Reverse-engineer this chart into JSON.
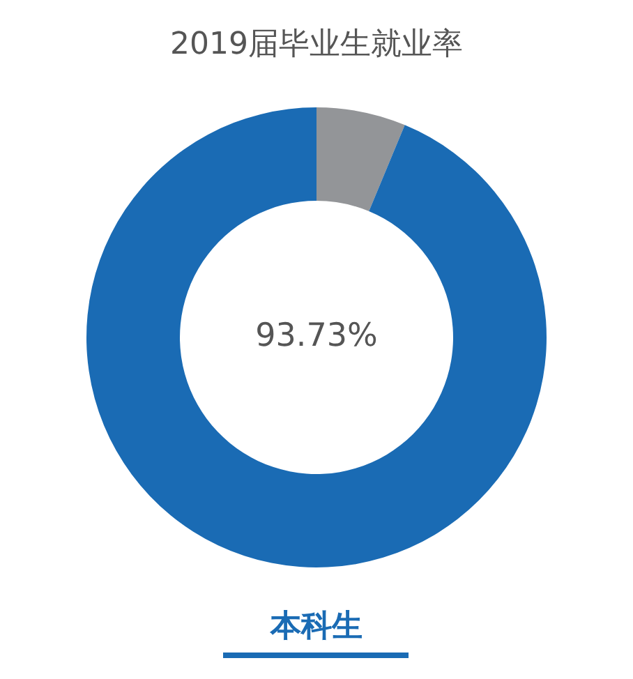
{
  "chart_data": {
    "type": "donut",
    "title": "2019届毕业生就业率",
    "categories": [
      null,
      null
    ],
    "values": [
      6.27,
      93.73
    ],
    "colors": [
      "#939598",
      "#1a6bb4"
    ],
    "annotations": [
      "93.73%",
      "本科生"
    ]
  }
}
